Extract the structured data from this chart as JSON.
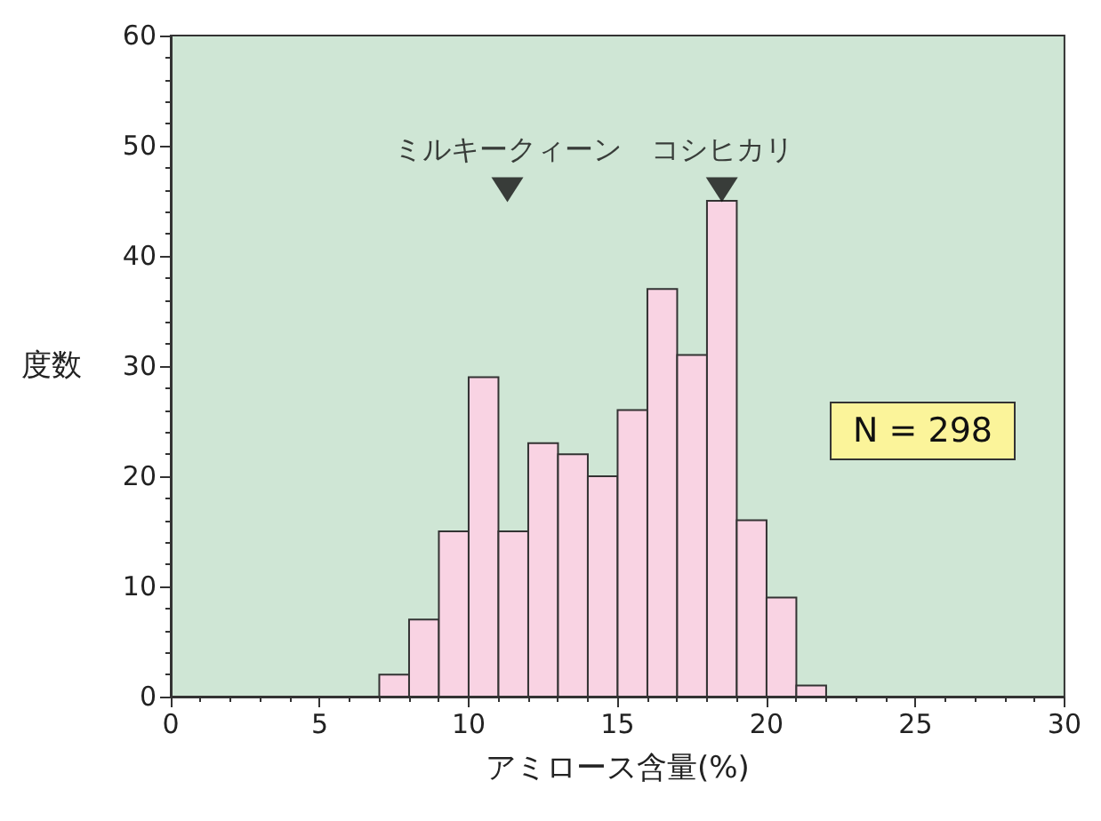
{
  "chart_data": {
    "type": "histogram",
    "xlabel": "アミロース含量(%)",
    "ylabel": "度数",
    "bins": [
      7,
      8,
      9,
      10,
      11,
      12,
      13,
      14,
      15,
      16,
      17,
      18,
      19,
      20,
      21,
      22
    ],
    "values": [
      2,
      7,
      15,
      29,
      15,
      23,
      22,
      20,
      26,
      37,
      31,
      45,
      16,
      9,
      1
    ],
    "color": "#f9d3e3",
    "xlim": [
      0,
      30
    ],
    "xticks": [
      0,
      5,
      10,
      15,
      20,
      25,
      30
    ],
    "ylim": [
      0,
      60
    ],
    "yticks": [
      0,
      10,
      20,
      30,
      40,
      50,
      60
    ],
    "grid": false,
    "annotations": [
      {
        "text": "ミルキークィーン",
        "x": 11.3,
        "y": 46
      },
      {
        "text": "コシヒカリ",
        "x": 18.5,
        "y": 46
      },
      "N = 298"
    ]
  }
}
